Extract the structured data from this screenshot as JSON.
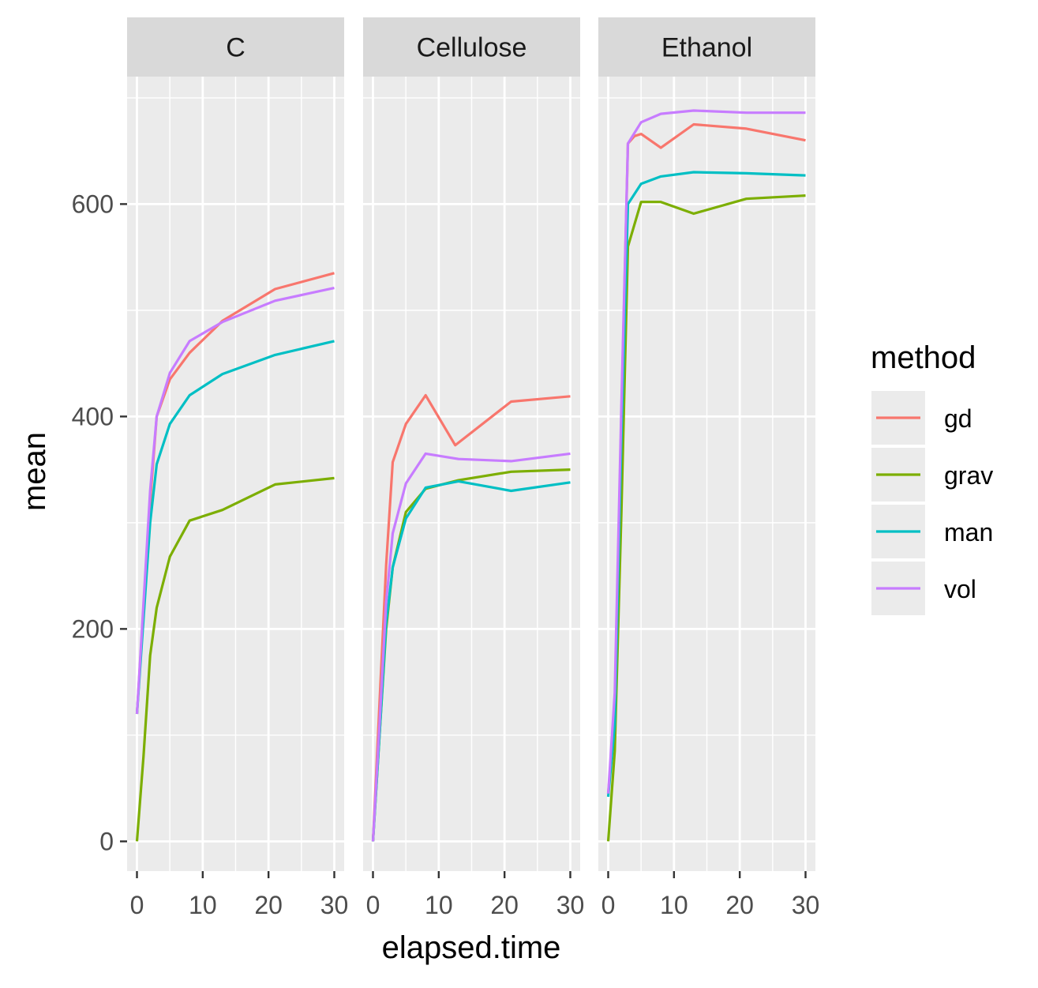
{
  "chart_data": {
    "type": "line",
    "facets": [
      "C",
      "Cellulose",
      "Ethanol"
    ],
    "xlabel": "elapsed.time",
    "ylabel": "mean",
    "xlim": [
      -1.5,
      31.5
    ],
    "ylim": [
      -28,
      720
    ],
    "x_ticks": [
      0,
      10,
      20,
      30
    ],
    "y_ticks": [
      0,
      200,
      400,
      600
    ],
    "grid": true,
    "legend": {
      "title": "method",
      "placement": "right",
      "entries": [
        "gd",
        "grav",
        "man",
        "vol"
      ]
    },
    "colors": {
      "gd": "#F8766D",
      "grav": "#7CAE00",
      "man": "#00BFC4",
      "vol": "#C77CFF",
      "panel_bg": "#EBEBEB",
      "strip_bg": "#D9D9D9",
      "grid": "#FFFFFF",
      "axis_text": "#4D4D4D",
      "strip_text": "#1A1A1A"
    },
    "panels": [
      {
        "facet": "C",
        "series": [
          {
            "name": "gd",
            "x": [
              0,
              2,
              3,
              5,
              8,
              13,
              21,
              30
            ],
            "y": [
              120,
              320,
              400,
              435,
              460,
              490,
              520,
              535
            ]
          },
          {
            "name": "grav",
            "x": [
              0,
              1,
              2,
              3,
              5,
              8,
              13,
              21,
              30
            ],
            "y": [
              0,
              80,
              175,
              220,
              268,
              302,
              312,
              336,
              342
            ]
          },
          {
            "name": "man",
            "x": [
              0,
              2,
              3,
              5,
              8,
              13,
              21,
              30
            ],
            "y": [
              120,
              300,
              355,
              393,
              420,
              440,
              458,
              471
            ]
          },
          {
            "name": "vol",
            "x": [
              0,
              2,
              3,
              5,
              8,
              13,
              21,
              30
            ],
            "y": [
              120,
              330,
              400,
              441,
              471,
              489,
              509,
              521
            ]
          }
        ]
      },
      {
        "facet": "Cellulose",
        "series": [
          {
            "name": "gd",
            "x": [
              0,
              1,
              2,
              3,
              5,
              8,
              12.5,
              21,
              30
            ],
            "y": [
              0,
              130,
              260,
              357,
              393,
              420,
              373,
              414,
              419
            ]
          },
          {
            "name": "grav",
            "x": [
              0,
              1,
              2,
              3,
              5,
              8,
              13,
              21,
              30
            ],
            "y": [
              0,
              100,
              200,
              258,
              310,
              332,
              340,
              348,
              350
            ]
          },
          {
            "name": "man",
            "x": [
              0,
              1,
              2,
              3,
              5,
              8,
              13,
              21,
              30
            ],
            "y": [
              0,
              100,
              205,
              258,
              304,
              333,
              339,
              330,
              338
            ]
          },
          {
            "name": "vol",
            "x": [
              0,
              1,
              2,
              3,
              5,
              8,
              13,
              21,
              30
            ],
            "y": [
              0,
              110,
              225,
              290,
              337,
              365,
              360,
              358,
              365
            ]
          }
        ]
      },
      {
        "facet": "Ethanol",
        "series": [
          {
            "name": "gd",
            "x": [
              0,
              1,
              2,
              3,
              4,
              5,
              8,
              13,
              21,
              30
            ],
            "y": [
              45,
              120,
              400,
              657,
              664,
              666,
              653,
              675,
              671,
              660
            ]
          },
          {
            "name": "grav",
            "x": [
              0,
              1,
              2,
              3,
              5,
              8,
              13,
              21,
              30
            ],
            "y": [
              0,
              85,
              310,
              560,
              602,
              602,
              591,
              605,
              608
            ]
          },
          {
            "name": "man",
            "x": [
              0,
              1,
              2,
              3,
              5,
              8,
              13,
              21,
              30
            ],
            "y": [
              42,
              110,
              380,
              600,
              619,
              626,
              630,
              629,
              627
            ]
          },
          {
            "name": "vol",
            "x": [
              0,
              1,
              2,
              3,
              5,
              8,
              13,
              21,
              30
            ],
            "y": [
              45,
              140,
              410,
              657,
              677,
              685,
              688,
              686,
              686
            ]
          }
        ]
      }
    ]
  }
}
